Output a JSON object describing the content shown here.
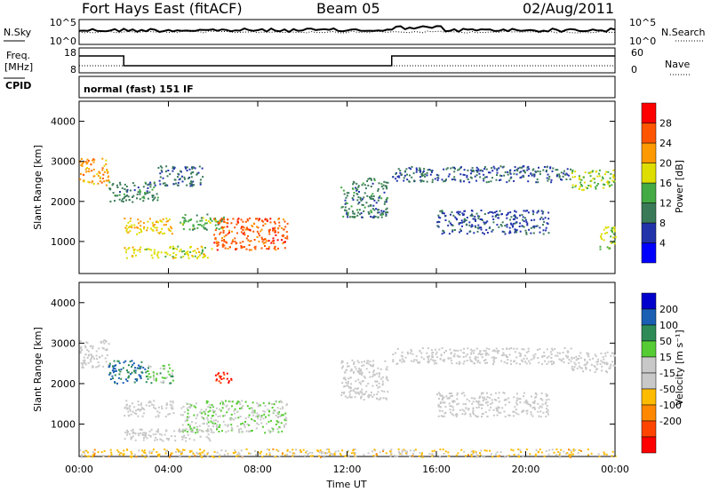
{
  "header": {
    "station": "Fort Hays East (fitACF)",
    "beam": "Beam 05",
    "date": "02/Aug/2011"
  },
  "noise_panel": {
    "left_label": "N.Sky",
    "right_label": "N.Search",
    "left_ticks": [
      "10^5",
      "10^0"
    ],
    "right_ticks": [
      "10^5",
      "10^0"
    ]
  },
  "freq_panel": {
    "left_label_line1": "Freq.",
    "left_label_line2": "[MHz]",
    "right_label": "Nave",
    "left_ticks": [
      "18",
      "8"
    ],
    "right_ticks": [
      "60",
      "0"
    ]
  },
  "cpid_panel": {
    "label": "CPID",
    "mode_text": "normal (fast) 151 IF"
  },
  "colors": {
    "power_scale": [
      "#0000ff",
      "#2233aa",
      "#3a7a58",
      "#44aa44",
      "#dddd00",
      "#ff9900",
      "#ff5500",
      "#ff0000"
    ],
    "velocity_scale": [
      "#0000cc",
      "#1a5fb4",
      "#2e8b57",
      "#55cc33",
      "#c8c8c8",
      "#c8c8c8",
      "#ffbb00",
      "#ff8800",
      "#ff4400",
      "#ff0000"
    ]
  },
  "chart_data": [
    {
      "type": "heatmap",
      "ylabel": "Slant Range [km]",
      "x_ticks": [
        "00:00",
        "04:00",
        "08:00",
        "12:00",
        "16:00",
        "20:00",
        "00:00"
      ],
      "y_ticks": [
        "1000",
        "2000",
        "3000",
        "4000"
      ],
      "ylim": [
        200,
        4500
      ],
      "xlim_hours": [
        0,
        24
      ],
      "colorbar": {
        "label": "Power [dB]",
        "ticks": [
          "4",
          "8",
          "12",
          "16",
          "20",
          "24",
          "28"
        ],
        "range": [
          0,
          32
        ]
      },
      "regions": [
        {
          "t0": 0.0,
          "t1": 1.3,
          "r0": 2400,
          "r1": 3100,
          "value": 22
        },
        {
          "t0": 1.3,
          "t1": 3.5,
          "r0": 2000,
          "r1": 2500,
          "value": 10
        },
        {
          "t0": 2.0,
          "t1": 4.2,
          "r0": 1200,
          "r1": 1600,
          "value": 20
        },
        {
          "t0": 4.5,
          "t1": 6.5,
          "r0": 1300,
          "r1": 1700,
          "value": 14
        },
        {
          "t0": 6.0,
          "t1": 9.3,
          "r0": 800,
          "r1": 1600,
          "value": 26
        },
        {
          "t0": 2.0,
          "t1": 6.0,
          "r0": 600,
          "r1": 900,
          "value": 18
        },
        {
          "t0": 3.5,
          "t1": 5.5,
          "r0": 2400,
          "r1": 2900,
          "value": 8
        },
        {
          "t0": 11.7,
          "t1": 13.8,
          "r0": 1600,
          "r1": 2600,
          "value": 10
        },
        {
          "t0": 14.0,
          "t1": 22.0,
          "r0": 2500,
          "r1": 2900,
          "value": 8
        },
        {
          "t0": 16.0,
          "t1": 21.0,
          "r0": 1200,
          "r1": 1800,
          "value": 7
        },
        {
          "t0": 22.0,
          "t1": 24.0,
          "r0": 2300,
          "r1": 2800,
          "value": 16
        },
        {
          "t0": 23.3,
          "t1": 24.0,
          "r0": 800,
          "r1": 1400,
          "value": 16
        }
      ]
    },
    {
      "type": "heatmap",
      "ylabel": "Slant Range [km]",
      "xlabel": "Time UT",
      "x_ticks": [
        "00:00",
        "04:00",
        "08:00",
        "12:00",
        "16:00",
        "20:00",
        "00:00"
      ],
      "y_ticks": [
        "1000",
        "2000",
        "3000",
        "4000"
      ],
      "ylim": [
        200,
        4500
      ],
      "xlim_hours": [
        0,
        24
      ],
      "colorbar": {
        "label": "Velocity [m s⁻¹]",
        "ticks": [
          "200",
          "100",
          "50",
          "15",
          "-15",
          "-50",
          "-100",
          "-200"
        ],
        "range": [
          -250,
          250
        ]
      },
      "regions": [
        {
          "t0": 0.0,
          "t1": 1.3,
          "r0": 2400,
          "r1": 3100,
          "value": 0
        },
        {
          "t0": 1.3,
          "t1": 3.0,
          "r0": 2000,
          "r1": 2600,
          "value": 150
        },
        {
          "t0": 3.0,
          "t1": 4.2,
          "r0": 2000,
          "r1": 2500,
          "value": 70
        },
        {
          "t0": 2.0,
          "t1": 4.2,
          "r0": 1200,
          "r1": 1600,
          "value": 0
        },
        {
          "t0": 4.5,
          "t1": 9.3,
          "r0": 800,
          "r1": 1600,
          "value": 40
        },
        {
          "t0": 6.0,
          "t1": 6.8,
          "r0": 2000,
          "r1": 2300,
          "value": -200
        },
        {
          "t0": 2.0,
          "t1": 6.0,
          "r0": 600,
          "r1": 900,
          "value": 0
        },
        {
          "t0": 11.7,
          "t1": 13.8,
          "r0": 1600,
          "r1": 2600,
          "value": 0
        },
        {
          "t0": 14.0,
          "t1": 22.0,
          "r0": 2500,
          "r1": 2900,
          "value": 0
        },
        {
          "t0": 16.0,
          "t1": 21.0,
          "r0": 1200,
          "r1": 1800,
          "value": 0
        },
        {
          "t0": 22.0,
          "t1": 24.0,
          "r0": 2300,
          "r1": 2800,
          "value": 0
        },
        {
          "t0": 0.0,
          "t1": 24.0,
          "r0": 200,
          "r1": 400,
          "value": -60
        }
      ]
    }
  ]
}
